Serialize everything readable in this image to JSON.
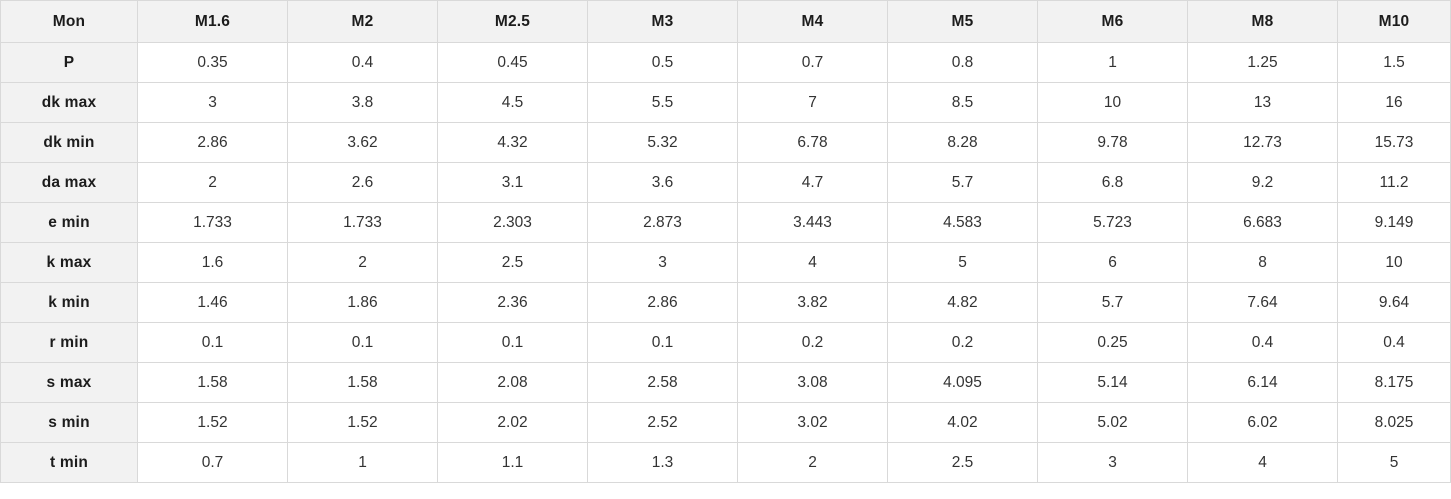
{
  "table": {
    "corner_label": "Mon",
    "columns": [
      "M1.6",
      "M2",
      "M2.5",
      "M3",
      "M4",
      "M5",
      "M6",
      "M8",
      "M10"
    ],
    "rows": [
      {
        "label": "P",
        "values": [
          "0.35",
          "0.4",
          "0.45",
          "0.5",
          "0.7",
          "0.8",
          "1",
          "1.25",
          "1.5"
        ]
      },
      {
        "label": "dk max",
        "values": [
          "3",
          "3.8",
          "4.5",
          "5.5",
          "7",
          "8.5",
          "10",
          "13",
          "16"
        ]
      },
      {
        "label": "dk min",
        "values": [
          "2.86",
          "3.62",
          "4.32",
          "5.32",
          "6.78",
          "8.28",
          "9.78",
          "12.73",
          "15.73"
        ]
      },
      {
        "label": "da max",
        "values": [
          "2",
          "2.6",
          "3.1",
          "3.6",
          "4.7",
          "5.7",
          "6.8",
          "9.2",
          "11.2"
        ]
      },
      {
        "label": "e min",
        "values": [
          "1.733",
          "1.733",
          "2.303",
          "2.873",
          "3.443",
          "4.583",
          "5.723",
          "6.683",
          "9.149"
        ]
      },
      {
        "label": "k max",
        "values": [
          "1.6",
          "2",
          "2.5",
          "3",
          "4",
          "5",
          "6",
          "8",
          "10"
        ]
      },
      {
        "label": "k min",
        "values": [
          "1.46",
          "1.86",
          "2.36",
          "2.86",
          "3.82",
          "4.82",
          "5.7",
          "7.64",
          "9.64"
        ]
      },
      {
        "label": "r min",
        "values": [
          "0.1",
          "0.1",
          "0.1",
          "0.1",
          "0.2",
          "0.2",
          "0.25",
          "0.4",
          "0.4"
        ]
      },
      {
        "label": "s max",
        "values": [
          "1.58",
          "1.58",
          "2.08",
          "2.58",
          "3.08",
          "4.095",
          "5.14",
          "6.14",
          "8.175"
        ]
      },
      {
        "label": "s min",
        "values": [
          "1.52",
          "1.52",
          "2.02",
          "2.52",
          "3.02",
          "4.02",
          "5.02",
          "6.02",
          "8.025"
        ]
      },
      {
        "label": "t min",
        "values": [
          "0.7",
          "1",
          "1.1",
          "1.3",
          "2",
          "2.5",
          "3",
          "4",
          "5"
        ]
      }
    ]
  },
  "colors": {
    "header_bg": "#f2f2f2",
    "cell_bg": "#ffffff",
    "border": "#d9d9d9",
    "header_text": "#1c1c1c",
    "cell_text": "#333333"
  }
}
